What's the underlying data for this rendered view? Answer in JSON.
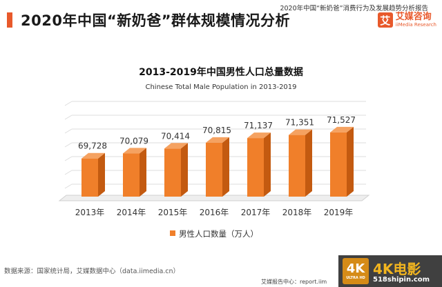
{
  "header": {
    "report_name": "2020年中国“新奶爸”消费行为及发展趋势分析报告",
    "page_title": "2020年中国“新奶爸”群体规模情况分析",
    "logo_cn": "艾媒咨询",
    "logo_en": "iiMedia Research",
    "logo_mark": "艾"
  },
  "chart_data": {
    "type": "bar",
    "title": "2013-2019年中国男性人口总量数据",
    "subtitle": "Chinese Total Male Population in 2013-2019",
    "categories": [
      "2013年",
      "2014年",
      "2015年",
      "2016年",
      "2017年",
      "2018年",
      "2019年"
    ],
    "series": [
      {
        "name": "男性人口数量（万人）",
        "values": [
          69728,
          70079,
          70414,
          70815,
          71137,
          71351,
          71527
        ],
        "labels": [
          "69,728",
          "70,079",
          "70,414",
          "70,815",
          "71,137",
          "71,351",
          "71,527"
        ],
        "color": "#f07f2a"
      }
    ],
    "legend": "bottom",
    "grid": true
  },
  "footer": {
    "source": "数据来源：国家统计局，艾媒数据中心（data.iimedia.cn）",
    "report_url": "艾媒报告中心：report.iim"
  },
  "watermark": {
    "badge": "4K",
    "badge_sub": "ULTRA HD",
    "title": "4K电影",
    "site": "518shipin.com"
  }
}
